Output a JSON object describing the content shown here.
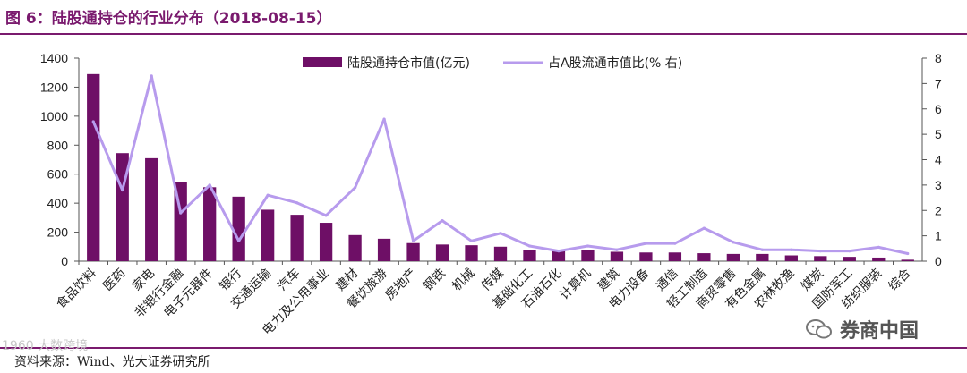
{
  "figure": {
    "title": "图 6：陆股通持仓的行业分布（2018-08-15）",
    "source": "资料来源：Wind、光大证券研究所",
    "watermark_left": "1960 大数跨境",
    "watermark_right": "券商中国"
  },
  "colors": {
    "bar": "#6e0f66",
    "line": "#b79bed",
    "title": "#7a1a6e",
    "axis": "#555555"
  },
  "chart_data": {
    "type": "bar",
    "categories": [
      "食品饮料",
      "医药",
      "家电",
      "非银行金融",
      "电子元器件",
      "银行",
      "交通运输",
      "汽车",
      "电力及公用事业",
      "建材",
      "餐饮旅游",
      "房地产",
      "钢铁",
      "机械",
      "传媒",
      "基础化工",
      "石油石化",
      "计算机",
      "建筑",
      "电力设备",
      "通信",
      "轻工制造",
      "商贸零售",
      "有色金属",
      "农林牧渔",
      "煤炭",
      "国防军工",
      "纺织服装",
      "综合"
    ],
    "series": [
      {
        "name": "陆股通持仓市值(亿元)",
        "type": "bar",
        "axis": "left",
        "values": [
          1290,
          745,
          710,
          545,
          510,
          445,
          355,
          320,
          265,
          180,
          155,
          125,
          115,
          110,
          100,
          80,
          75,
          75,
          65,
          60,
          60,
          55,
          50,
          50,
          40,
          35,
          30,
          25,
          10
        ]
      },
      {
        "name": "占A股流通市值比(% 右)",
        "type": "line",
        "axis": "right",
        "values": [
          5.5,
          2.8,
          7.3,
          1.9,
          3.0,
          0.8,
          2.6,
          2.3,
          1.8,
          2.9,
          5.6,
          0.8,
          1.6,
          0.8,
          1.1,
          0.6,
          0.4,
          0.6,
          0.45,
          0.7,
          0.7,
          1.3,
          0.75,
          0.45,
          0.45,
          0.4,
          0.4,
          0.55,
          0.3
        ]
      }
    ],
    "y_left": {
      "min": 0,
      "max": 1400,
      "ticks": [
        0,
        200,
        400,
        600,
        800,
        1000,
        1200,
        1400
      ]
    },
    "y_right": {
      "min": 0,
      "max": 8,
      "ticks": [
        0,
        1,
        2,
        3,
        4,
        5,
        6,
        7,
        8
      ]
    },
    "legend_position": "top-center",
    "grid": false
  }
}
